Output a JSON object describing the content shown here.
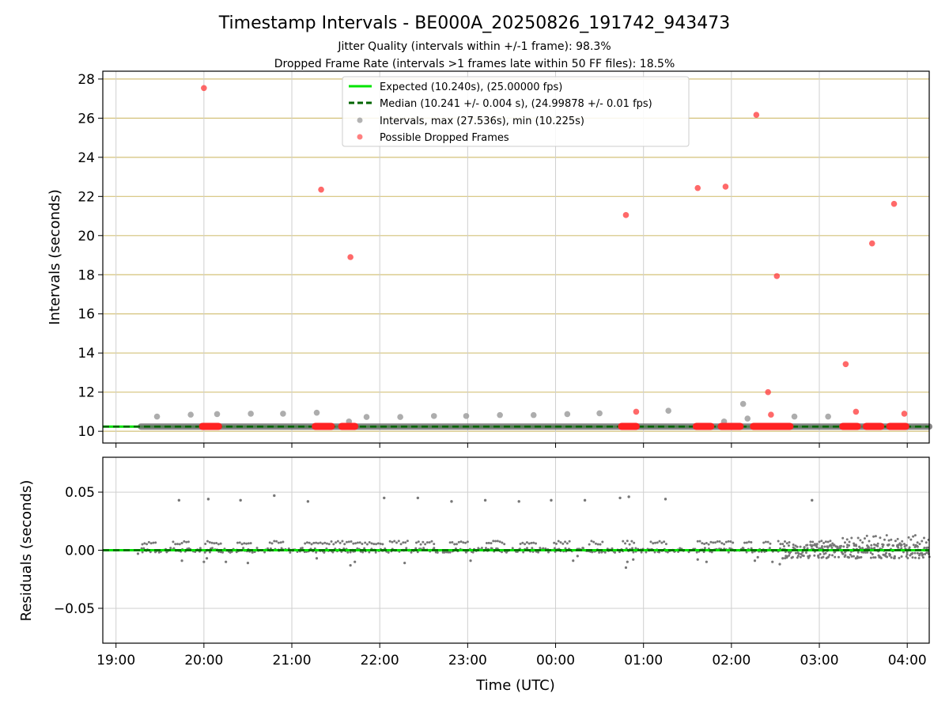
{
  "chart_data": [
    {
      "type": "scatter",
      "title": "Timestamp Intervals - BE000A_20250826_191742_943473",
      "subtitle_lines": [
        "Jitter Quality (intervals within +/-1 frame): 98.3%",
        "Dropped Frame Rate (intervals >1 frames late within 50 FF files): 18.5%"
      ],
      "xlabel": "",
      "ylabel": "Intervals (seconds)",
      "x_axis": {
        "type": "time",
        "start": "19:00",
        "ticks": [
          "19:00",
          "20:00",
          "21:00",
          "22:00",
          "23:00",
          "00:00",
          "01:00",
          "02:00",
          "03:00",
          "04:00"
        ],
        "range_hours": [
          -0.15,
          9.25
        ]
      },
      "ylim": [
        9.4,
        28.4
      ],
      "yticks": [
        10,
        12,
        14,
        16,
        18,
        20,
        22,
        24,
        26,
        28
      ],
      "grid": {
        "vertical": true,
        "horizontal_tan": true
      },
      "legend": {
        "placement": "top-center",
        "entries": [
          {
            "label": "Expected (10.240s), (25.00000 fps)",
            "style": "solid-line",
            "color": "#00e400"
          },
          {
            "label": "Median (10.241 +/- 0.004 s), (24.99878 +/- 0.01 fps)",
            "style": "dashed-line",
            "color": "#006400"
          },
          {
            "label": "Intervals, max (27.536s), min (10.225s)",
            "style": "gray-dot",
            "color": "#999999"
          },
          {
            "label": "Possible Dropped Frames",
            "style": "red-dot",
            "color": "#ff5555"
          }
        ]
      },
      "series": [
        {
          "name": "Expected (10.240s), (25.00000 fps)",
          "kind": "hline",
          "value": 10.24,
          "color": "#00e400"
        },
        {
          "name": "Median (10.241 +/- 0.004 s), (24.99878 +/- 0.01 fps)",
          "kind": "hline-dashed",
          "value": 10.241,
          "color": "#006400"
        },
        {
          "name": "Intervals, max (27.536s), min (10.225s)",
          "kind": "band",
          "x_range": [
            "19:17",
            "04:15"
          ],
          "value": 10.241,
          "color": "#666666"
        },
        {
          "name": "Intervals, max (27.536s), min (10.225s)",
          "kind": "scatter",
          "color": "#999999",
          "points": [
            [
              "19:28",
              10.75
            ],
            [
              "19:51",
              10.85
            ],
            [
              "20:09",
              10.88
            ],
            [
              "20:32",
              10.9
            ],
            [
              "20:54",
              10.9
            ],
            [
              "21:17",
              10.95
            ],
            [
              "21:39",
              10.5
            ],
            [
              "21:51",
              10.73
            ],
            [
              "22:14",
              10.73
            ],
            [
              "22:37",
              10.78
            ],
            [
              "22:59",
              10.78
            ],
            [
              "23:22",
              10.83
            ],
            [
              "23:45",
              10.83
            ],
            [
              "00:08",
              10.88
            ],
            [
              "00:30",
              10.92
            ],
            [
              "01:17",
              11.05
            ],
            [
              "01:55",
              10.5
            ],
            [
              "02:08",
              11.4
            ],
            [
              "02:11",
              10.65
            ],
            [
              "02:43",
              10.75
            ],
            [
              "03:06",
              10.75
            ]
          ]
        },
        {
          "name": "Possible Dropped Frames",
          "kind": "scatter",
          "color": "#ff4444",
          "points": [
            [
              "20:00",
              27.54
            ],
            [
              "21:20",
              22.35
            ],
            [
              "21:40",
              18.9
            ],
            [
              "00:48",
              21.05
            ],
            [
              "00:55",
              11.0
            ],
            [
              "01:37",
              22.43
            ],
            [
              "01:56",
              22.5
            ],
            [
              "02:17",
              26.17
            ],
            [
              "02:25",
              12.0
            ],
            [
              "02:27",
              10.85
            ],
            [
              "02:31",
              17.93
            ],
            [
              "03:18",
              13.43
            ],
            [
              "03:25",
              11.0
            ],
            [
              "03:36",
              19.6
            ],
            [
              "03:51",
              21.62
            ],
            [
              "03:58",
              10.9
            ]
          ],
          "clusters": [
            [
              "19:59",
              "20:10"
            ],
            [
              "21:16",
              "21:27"
            ],
            [
              "21:34",
              "21:43"
            ],
            [
              "00:45",
              "00:55"
            ],
            [
              "01:36",
              "01:46"
            ],
            [
              "01:53",
              "02:06"
            ],
            [
              "02:15",
              "02:40"
            ],
            [
              "03:16",
              "03:26"
            ],
            [
              "03:32",
              "03:42"
            ],
            [
              "03:48",
              "03:59"
            ]
          ]
        }
      ]
    },
    {
      "type": "scatter",
      "xlabel": "Time (UTC)",
      "ylabel": "Residuals (seconds)",
      "x_axis": {
        "type": "time",
        "start": "19:00",
        "ticks": [
          "19:00",
          "20:00",
          "21:00",
          "22:00",
          "23:00",
          "00:00",
          "01:00",
          "02:00",
          "03:00",
          "04:00"
        ],
        "range_hours": [
          -0.15,
          9.25
        ]
      },
      "ylim": [
        -0.08,
        0.08
      ],
      "yticks": [
        -0.05,
        0.0,
        0.05
      ],
      "ytick_labels": [
        "−0.05",
        "0.00",
        "0.05"
      ],
      "grid": {
        "vertical": true,
        "horizontal_gray": true
      },
      "series": [
        {
          "name": "Expected (10.240s), (25.00000 fps)",
          "kind": "hline",
          "value": 0.0,
          "color": "#00e400"
        },
        {
          "name": "Median (10.241 +/- 0.004 s), (24.99878 +/- 0.01 fps)",
          "kind": "hline-dashed",
          "value": 0.0,
          "color": "#006400"
        },
        {
          "name": "Residuals",
          "kind": "scatter",
          "color": "#777777",
          "outliers": [
            [
              "19:43",
              0.043
            ],
            [
              "20:03",
              0.044
            ],
            [
              "20:25",
              0.043
            ],
            [
              "20:48",
              0.047
            ],
            [
              "21:11",
              0.042
            ],
            [
              "22:03",
              0.045
            ],
            [
              "22:26",
              0.045
            ],
            [
              "22:49",
              0.042
            ],
            [
              "23:12",
              0.043
            ],
            [
              "23:35",
              0.042
            ],
            [
              "23:57",
              0.043
            ],
            [
              "00:20",
              0.043
            ],
            [
              "00:44",
              0.045
            ],
            [
              "00:50",
              0.046
            ],
            [
              "01:15",
              0.044
            ],
            [
              "02:55",
              0.043
            ]
          ],
          "upper_band_segments": [
            [
              "19:18",
              "19:28"
            ],
            [
              "19:39",
              "19:51"
            ],
            [
              "20:01",
              "20:12"
            ],
            [
              "20:23",
              "20:33"
            ],
            [
              "20:45",
              "20:55"
            ],
            [
              "21:09",
              "21:49"
            ],
            [
              "21:50",
              "22:03"
            ],
            [
              "22:07",
              "22:19"
            ],
            [
              "22:25",
              "22:38"
            ],
            [
              "22:48",
              "23:00"
            ],
            [
              "23:13",
              "23:26"
            ],
            [
              "23:36",
              "23:47"
            ],
            [
              "23:59",
              "24:10"
            ],
            [
              "24:23",
              "24:33"
            ],
            [
              "24:46",
              "24:55"
            ],
            [
              "25:05",
              "25:17"
            ],
            [
              "25:37",
              "26:02"
            ],
            [
              "26:09",
              "26:15"
            ],
            [
              "26:22",
              "26:28"
            ],
            [
              "26:32",
              "26:40"
            ],
            [
              "26:54",
              "27:10"
            ],
            [
              "27:16",
              "28:15"
            ]
          ],
          "lower_spots": [
            [
              "19:15",
              -0.003
            ],
            [
              "19:45",
              -0.009
            ],
            [
              "20:00",
              -0.01
            ],
            [
              "20:02",
              -0.007
            ],
            [
              "20:15",
              -0.01
            ],
            [
              "20:30",
              -0.011
            ],
            [
              "21:17",
              -0.007
            ],
            [
              "21:40",
              -0.013
            ],
            [
              "21:43",
              -0.01
            ],
            [
              "22:17",
              -0.011
            ],
            [
              "23:02",
              -0.009
            ],
            [
              "00:12",
              -0.009
            ],
            [
              "00:15",
              -0.005
            ],
            [
              "00:48",
              -0.015
            ],
            [
              "00:49",
              -0.01
            ],
            [
              "00:53",
              -0.008
            ],
            [
              "01:37",
              -0.008
            ],
            [
              "01:43",
              -0.01
            ],
            [
              "02:16",
              -0.009
            ],
            [
              "02:18",
              -0.006
            ],
            [
              "02:28",
              -0.01
            ],
            [
              "02:33",
              -0.012
            ],
            [
              "02:35",
              -0.007
            ],
            [
              "03:25",
              -0.007
            ],
            [
              "03:41",
              -0.006
            ]
          ]
        }
      ]
    }
  ]
}
